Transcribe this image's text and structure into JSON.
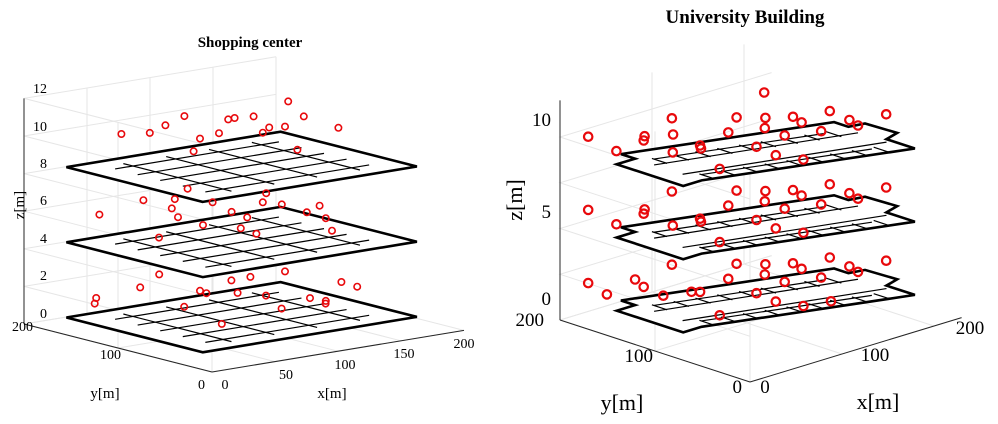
{
  "chart_data": [
    {
      "type": "scatter",
      "title": "Shopping center",
      "xlabel": "x[m]",
      "ylabel": "y[m]",
      "zlabel": "z[m]",
      "xlim": [
        0,
        200
      ],
      "ylim": [
        0,
        200
      ],
      "zlim": [
        0,
        12
      ],
      "xticks": [
        "0",
        "50",
        "100",
        "150",
        "200"
      ],
      "yticks": [
        "0",
        "100",
        "200"
      ],
      "zticks": [
        "0",
        "2",
        "4",
        "6",
        "8",
        "10",
        "12"
      ],
      "floor_heights": [
        0.5,
        4.5,
        8.5
      ],
      "marker": "circle",
      "marker_color": "#e8090c",
      "floor_color": "#000000",
      "grid": true,
      "points_per_floor": [
        [
          [
            20,
            150,
            1.8
          ],
          [
            30,
            165,
            1.2
          ],
          [
            40,
            130,
            2.4
          ],
          [
            60,
            110,
            1.4
          ],
          [
            70,
            150,
            2.5
          ],
          [
            80,
            120,
            1.9
          ],
          [
            90,
            100,
            2.6
          ],
          [
            100,
            140,
            1.3
          ],
          [
            110,
            90,
            1.7
          ],
          [
            120,
            120,
            2.2
          ],
          [
            130,
            70,
            1.6
          ],
          [
            140,
            110,
            2.4
          ],
          [
            150,
            80,
            1.1
          ],
          [
            160,
            60,
            2.0
          ],
          [
            100,
            60,
            1.5
          ],
          [
            80,
            80,
            2.3
          ],
          [
            60,
            70,
            1.0
          ],
          [
            120,
            40,
            1.8
          ],
          [
            140,
            50,
            2.6
          ]
        ],
        [
          [
            30,
            160,
            6.0
          ],
          [
            50,
            140,
            6.8
          ],
          [
            70,
            130,
            5.8
          ],
          [
            90,
            120,
            6.5
          ],
          [
            110,
            110,
            5.6
          ],
          [
            130,
            100,
            6.2
          ],
          [
            150,
            80,
            5.5
          ],
          [
            60,
            90,
            6.0
          ],
          [
            80,
            150,
            5.9
          ],
          [
            100,
            160,
            6.6
          ],
          [
            120,
            140,
            5.4
          ],
          [
            140,
            130,
            6.3
          ],
          [
            40,
            110,
            5.3
          ],
          [
            160,
            100,
            5.8
          ],
          [
            100,
            80,
            6.9
          ],
          [
            80,
            60,
            5.7
          ],
          [
            120,
            60,
            6.4
          ],
          [
            140,
            60,
            5.2
          ],
          [
            60,
            120,
            7.0
          ],
          [
            90,
            90,
            5.5
          ]
        ],
        [
          [
            40,
            150,
            10.3
          ],
          [
            60,
            130,
            10.8
          ],
          [
            80,
            120,
            10.0
          ],
          [
            100,
            110,
            11.0
          ],
          [
            120,
            100,
            10.4
          ],
          [
            140,
            90,
            10.9
          ],
          [
            160,
            80,
            10.2
          ],
          [
            70,
            160,
            9.9
          ],
          [
            90,
            150,
            10.7
          ],
          [
            110,
            140,
            9.7
          ],
          [
            130,
            130,
            10.5
          ],
          [
            150,
            120,
            11.2
          ],
          [
            60,
            100,
            9.8
          ],
          [
            100,
            80,
            10.6
          ],
          [
            120,
            70,
            9.6
          ],
          [
            80,
            90,
            11.4
          ],
          [
            140,
            110,
            10.1
          ]
        ]
      ]
    },
    {
      "type": "scatter",
      "title": "University Building",
      "xlabel": "x[m]",
      "ylabel": "y[m]",
      "zlabel": "z[m]",
      "xlim": [
        0,
        230
      ],
      "ylim": [
        0,
        200
      ],
      "zlim": [
        0,
        11
      ],
      "xticks": [
        "0",
        "100",
        "200"
      ],
      "yticks": [
        "0",
        "100",
        "200"
      ],
      "zticks": [
        "0",
        "5",
        "10"
      ],
      "floor_heights": [
        1.2,
        5.2,
        9.2
      ],
      "marker": "circle",
      "marker_color": "#e8090c",
      "floor_color": "#000000",
      "grid": true,
      "points_per_floor": [
        [
          [
            10,
            180,
            2.2
          ],
          [
            20,
            170,
            1.6
          ],
          [
            30,
            150,
            2.6
          ],
          [
            40,
            130,
            1.9
          ],
          [
            50,
            110,
            2.3
          ],
          [
            60,
            170,
            1.4
          ],
          [
            70,
            150,
            2.8
          ],
          [
            80,
            130,
            1.5
          ],
          [
            90,
            110,
            2.4
          ],
          [
            100,
            90,
            1.8
          ],
          [
            110,
            70,
            2.6
          ],
          [
            120,
            60,
            1.3
          ],
          [
            130,
            140,
            2.1
          ],
          [
            140,
            120,
            1.7
          ],
          [
            150,
            100,
            2.5
          ],
          [
            160,
            80,
            1.9
          ],
          [
            170,
            60,
            2.7
          ],
          [
            180,
            120,
            1.4
          ],
          [
            190,
            100,
            2.2
          ],
          [
            200,
            80,
            1.6
          ],
          [
            210,
            60,
            2.4
          ],
          [
            60,
            90,
            1.2
          ],
          [
            90,
            60,
            2.0
          ],
          [
            120,
            100,
            2.9
          ],
          [
            150,
            60,
            1.1
          ]
        ],
        [
          [
            10,
            180,
            6.2
          ],
          [
            20,
            160,
            5.6
          ],
          [
            30,
            140,
            6.6
          ],
          [
            40,
            120,
            5.9
          ],
          [
            50,
            100,
            6.3
          ],
          [
            60,
            170,
            5.4
          ],
          [
            70,
            150,
            6.8
          ],
          [
            80,
            130,
            5.5
          ],
          [
            90,
            110,
            6.4
          ],
          [
            100,
            90,
            5.8
          ],
          [
            110,
            70,
            6.6
          ],
          [
            120,
            60,
            5.3
          ],
          [
            130,
            140,
            6.1
          ],
          [
            140,
            120,
            5.7
          ],
          [
            150,
            100,
            6.5
          ],
          [
            160,
            80,
            5.9
          ],
          [
            170,
            60,
            6.7
          ],
          [
            180,
            120,
            5.4
          ],
          [
            190,
            100,
            6.2
          ],
          [
            200,
            80,
            5.6
          ],
          [
            210,
            60,
            6.4
          ],
          [
            60,
            90,
            5.2
          ],
          [
            90,
            60,
            6.0
          ],
          [
            120,
            100,
            6.9
          ]
        ],
        [
          [
            10,
            180,
            10.2
          ],
          [
            20,
            160,
            9.6
          ],
          [
            30,
            140,
            10.6
          ],
          [
            40,
            120,
            9.9
          ],
          [
            50,
            100,
            10.3
          ],
          [
            60,
            170,
            9.4
          ],
          [
            70,
            150,
            10.8
          ],
          [
            80,
            130,
            9.5
          ],
          [
            90,
            110,
            10.4
          ],
          [
            100,
            90,
            9.8
          ],
          [
            110,
            70,
            10.6
          ],
          [
            120,
            60,
            9.3
          ],
          [
            130,
            140,
            10.1
          ],
          [
            140,
            120,
            9.7
          ],
          [
            150,
            100,
            10.5
          ],
          [
            160,
            80,
            9.9
          ],
          [
            170,
            60,
            10.7
          ],
          [
            180,
            120,
            9.4
          ],
          [
            190,
            100,
            10.2
          ],
          [
            200,
            80,
            9.6
          ],
          [
            210,
            60,
            10.4
          ],
          [
            60,
            90,
            9.2
          ],
          [
            90,
            60,
            10.0
          ],
          [
            120,
            100,
            10.9
          ],
          [
            30,
            110,
            11.2
          ],
          [
            160,
            140,
            11.0
          ]
        ]
      ]
    }
  ]
}
